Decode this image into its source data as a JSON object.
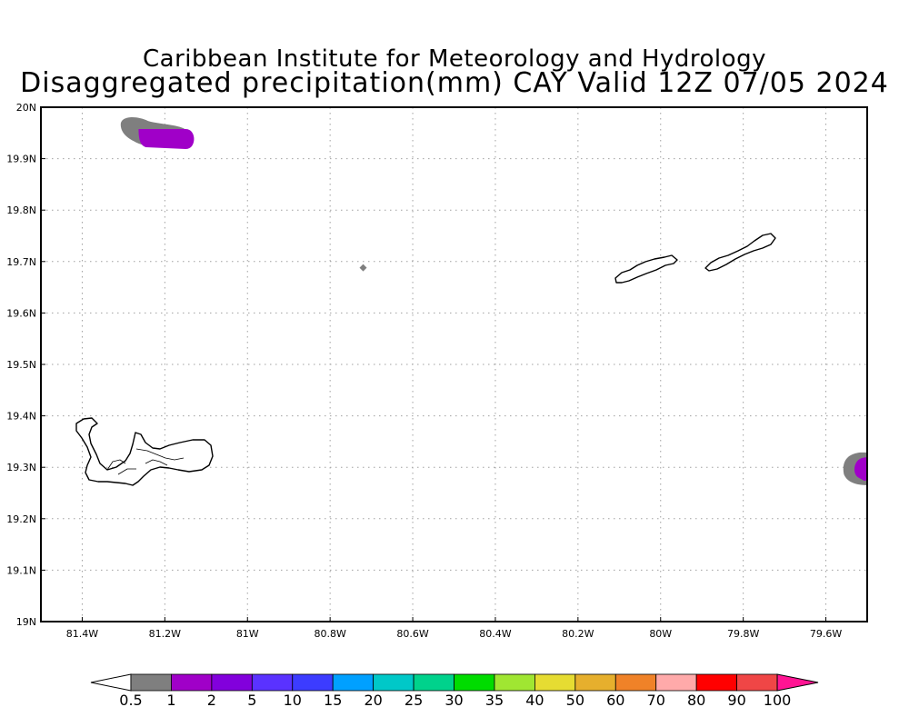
{
  "title": {
    "line1": "Caribbean Institute for Meteorology and Hydrology",
    "line2": "Disaggregated precipitation(mm) CAY Valid 12Z 07/05 2024"
  },
  "map": {
    "lon_range": [
      -81.5,
      -79.5
    ],
    "lat_range": [
      19.0,
      20.0
    ],
    "grid": true,
    "x_ticks": [
      {
        "v": -81.4,
        "label": "81.4W"
      },
      {
        "v": -81.2,
        "label": "81.2W"
      },
      {
        "v": -81.0,
        "label": "81W"
      },
      {
        "v": -80.8,
        "label": "80.8W"
      },
      {
        "v": -80.6,
        "label": "80.6W"
      },
      {
        "v": -80.4,
        "label": "80.4W"
      },
      {
        "v": -80.2,
        "label": "80.2W"
      },
      {
        "v": -80.0,
        "label": "80W"
      },
      {
        "v": -79.8,
        "label": "79.8W"
      },
      {
        "v": -79.6,
        "label": "79.6W"
      }
    ],
    "y_ticks": [
      {
        "v": 20.0,
        "label": "20N"
      },
      {
        "v": 19.9,
        "label": "19.9N"
      },
      {
        "v": 19.8,
        "label": "19.8N"
      },
      {
        "v": 19.7,
        "label": "19.7N"
      },
      {
        "v": 19.6,
        "label": "19.6N"
      },
      {
        "v": 19.5,
        "label": "19.5N"
      },
      {
        "v": 19.4,
        "label": "19.4N"
      },
      {
        "v": 19.3,
        "label": "19.3N"
      },
      {
        "v": 19.2,
        "label": "19.2N"
      },
      {
        "v": 19.1,
        "label": "19.1N"
      },
      {
        "v": 19.0,
        "label": "19N"
      }
    ],
    "precip_areas": [
      {
        "lon": -81.21,
        "lat": 19.945,
        "level": "0.5-1"
      },
      {
        "lon": -81.18,
        "lat": 19.94,
        "level": "1-2"
      },
      {
        "lon": -79.53,
        "lat": 19.297,
        "level": "0.5-1"
      },
      {
        "lon": -79.52,
        "lat": 19.297,
        "level": "1-2"
      },
      {
        "lon": -80.72,
        "lat": 19.688,
        "level": "0.5-1"
      }
    ]
  },
  "colorbar": {
    "labels": [
      "0.5",
      "1",
      "2",
      "5",
      "10",
      "15",
      "20",
      "25",
      "30",
      "35",
      "40",
      "50",
      "60",
      "70",
      "80",
      "90",
      "100"
    ],
    "colors": [
      "#ffffff",
      "#7f7f7f",
      "#a000c8",
      "#8200dc",
      "#5a32ff",
      "#3c3cff",
      "#00a0ff",
      "#00c8c8",
      "#00d28c",
      "#00dc00",
      "#a0e632",
      "#e6dc32",
      "#e6af2d",
      "#f08228",
      "#ffaaaa",
      "#ff0000",
      "#f04646",
      "#ff1493"
    ]
  }
}
